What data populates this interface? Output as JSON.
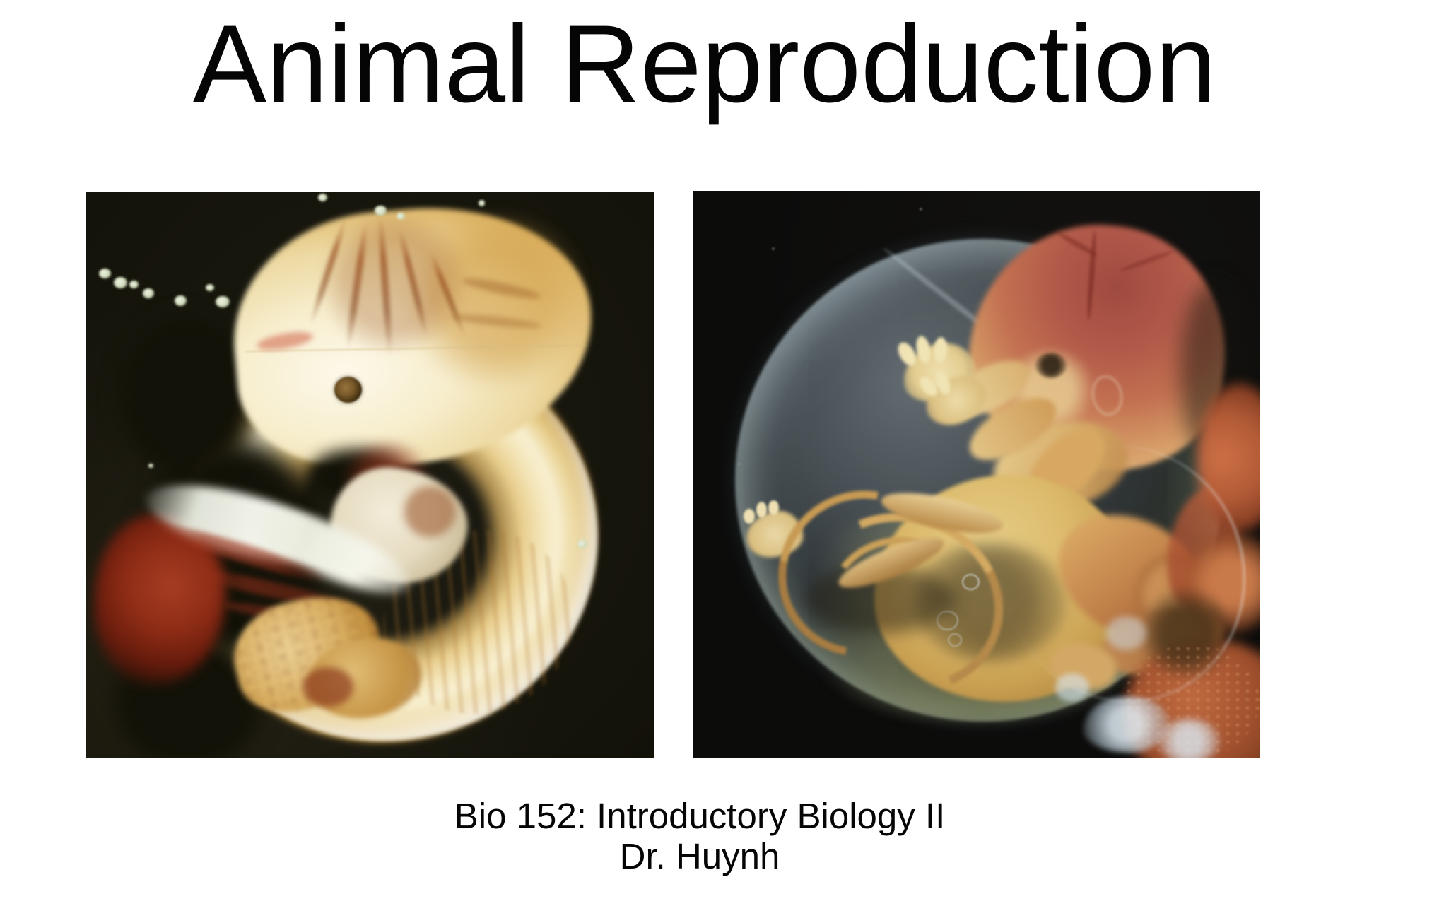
{
  "slide": {
    "title": "Animal Reproduction",
    "caption": {
      "line1": "Bio 152: Introductory Biology II",
      "line2": "Dr. Huynh"
    }
  },
  "figures": {
    "left": "early-embryo-photograph",
    "right": "fetus-in-amniotic-sac-photograph"
  },
  "colors": {
    "page_background": "#ffffff",
    "title_text": "#050505",
    "caption_text": "#050505",
    "photo_left_background": "#131208",
    "photo_right_background": "#0c0c0b",
    "embryo_cream": "#f6eccb",
    "embryo_amber": "#d3a54e",
    "embryo_red": "#8f2d16",
    "sac_blue": "#9fb4c4",
    "fetus_crown_red": "#b35a4a",
    "fetus_skin_gold": "#dcba6c",
    "placenta_coral": "#b25a36"
  }
}
